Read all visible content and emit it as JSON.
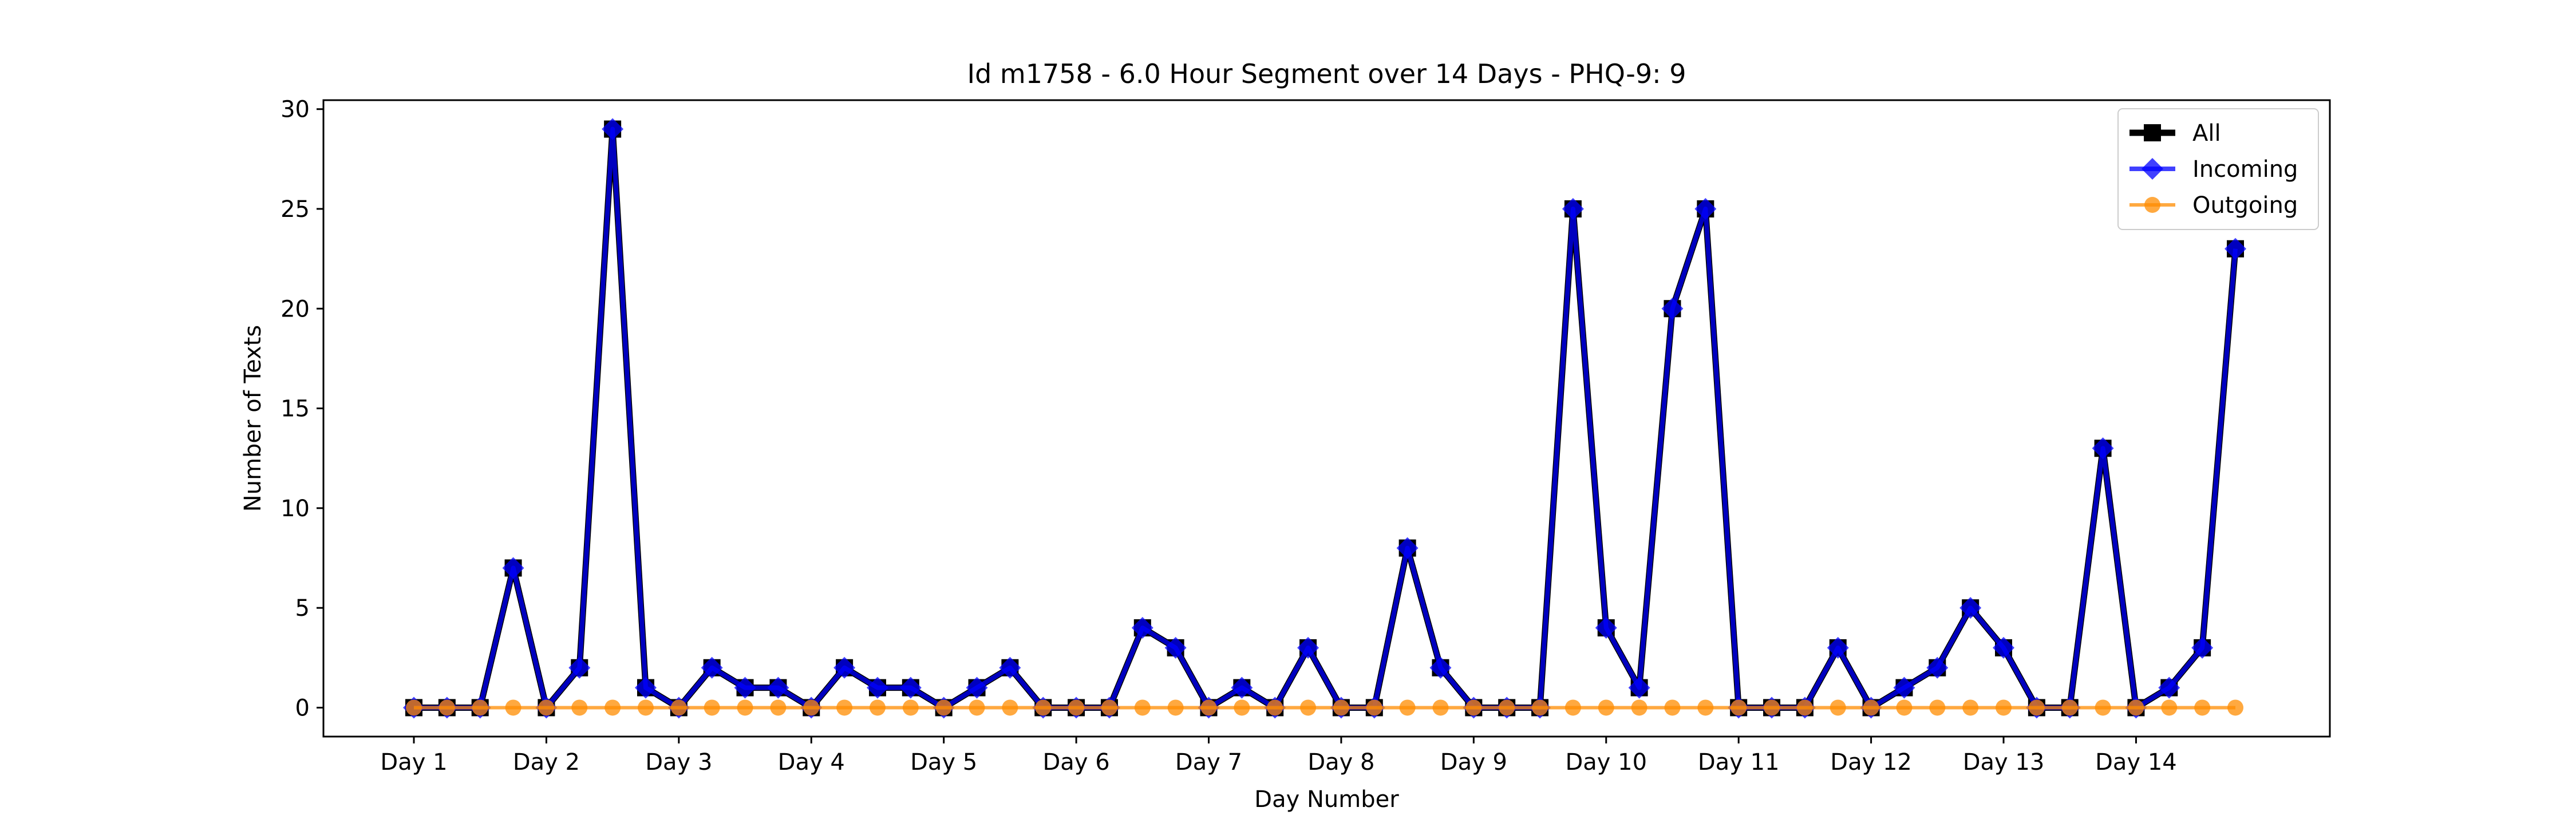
{
  "chart_data": {
    "type": "line",
    "title": "Id m1758 - 6.0 Hour Segment over 14 Days - PHQ-9: 9",
    "xlabel": "Day Number",
    "ylabel": "Number of Texts",
    "x_tick_labels": [
      "Day 1",
      "Day 2",
      "Day 3",
      "Day 4",
      "Day 5",
      "Day 6",
      "Day 7",
      "Day 8",
      "Day 9",
      "Day 10",
      "Day 11",
      "Day 12",
      "Day 13",
      "Day 14"
    ],
    "y_ticks": [
      0,
      5,
      10,
      15,
      20,
      25,
      30
    ],
    "ylim": [
      -1.45,
      30.45
    ],
    "grid": false,
    "legend_position": "top-right",
    "series": [
      {
        "name": "All",
        "color": "#000000",
        "marker": "square",
        "values": [
          0,
          0,
          0,
          7,
          0,
          2,
          29,
          1,
          0,
          2,
          1,
          1,
          0,
          2,
          1,
          1,
          0,
          1,
          2,
          0,
          0,
          0,
          4,
          3,
          0,
          1,
          0,
          3,
          0,
          0,
          8,
          2,
          0,
          0,
          0,
          25,
          4,
          1,
          20,
          25,
          0,
          0,
          0,
          3,
          0,
          1,
          2,
          5,
          3,
          0,
          0,
          13,
          0,
          1,
          3,
          23
        ]
      },
      {
        "name": "Incoming",
        "color": "#0000ff",
        "marker": "diamond",
        "values": [
          0,
          0,
          0,
          7,
          0,
          2,
          29,
          1,
          0,
          2,
          1,
          1,
          0,
          2,
          1,
          1,
          0,
          1,
          2,
          0,
          0,
          0,
          4,
          3,
          0,
          1,
          0,
          3,
          0,
          0,
          8,
          2,
          0,
          0,
          0,
          25,
          4,
          1,
          20,
          25,
          0,
          0,
          0,
          3,
          0,
          1,
          2,
          5,
          3,
          0,
          0,
          13,
          0,
          1,
          3,
          23
        ]
      },
      {
        "name": "Outgoing",
        "color": "#ff8c00",
        "marker": "circle",
        "values": [
          0,
          0,
          0,
          0,
          0,
          0,
          0,
          0,
          0,
          0,
          0,
          0,
          0,
          0,
          0,
          0,
          0,
          0,
          0,
          0,
          0,
          0,
          0,
          0,
          0,
          0,
          0,
          0,
          0,
          0,
          0,
          0,
          0,
          0,
          0,
          0,
          0,
          0,
          0,
          0,
          0,
          0,
          0,
          0,
          0,
          0,
          0,
          0,
          0,
          0,
          0,
          0,
          0,
          0,
          0,
          0
        ]
      }
    ]
  }
}
